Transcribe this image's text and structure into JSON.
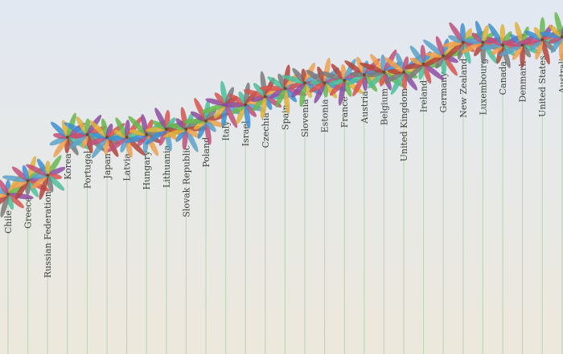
{
  "chart_data": {
    "type": "scatter",
    "categories": [
      "Chile",
      "Greece",
      "Russian Federation",
      "Korea",
      "Portugal",
      "Japan",
      "Latvia",
      "Hungary",
      "Lithuania",
      "Slovak Republic",
      "Poland",
      "Italy",
      "Israel",
      "Czechia",
      "Spain",
      "Slovenia",
      "Estonia",
      "France",
      "Austria",
      "Belgium",
      "United Kingdom",
      "Ireland",
      "Germany",
      "New Zealand",
      "Luxembourg",
      "Canada",
      "Denmark",
      "United States",
      "Australia"
    ],
    "values": [
      5.1,
      5.6,
      5.8,
      7.2,
      7.3,
      7.2,
      7.2,
      7.3,
      7.5,
      7.5,
      7.8,
      8.4,
      8.4,
      8.7,
      9.0,
      9.2,
      9.2,
      9.3,
      9.5,
      9.6,
      9.6,
      9.9,
      10.2,
      10.7,
      10.7,
      10.6,
      10.6,
      10.8,
      10.9
    ],
    "petal_colors": [
      "#3e8fd3",
      "#e0b13a",
      "#66b84e",
      "#8e4ea3",
      "#d9534f",
      "#4bbf9a",
      "#7a7a7a",
      "#b5433a",
      "#f0a04b",
      "#5aa2c9",
      "#c24f7a"
    ]
  }
}
